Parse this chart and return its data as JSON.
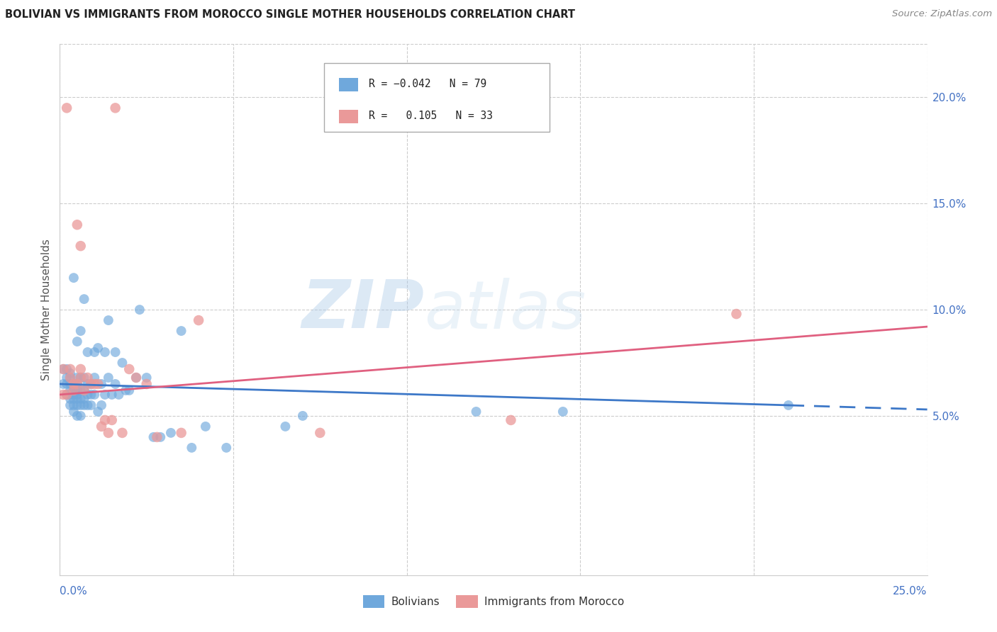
{
  "title": "BOLIVIAN VS IMMIGRANTS FROM MOROCCO SINGLE MOTHER HOUSEHOLDS CORRELATION CHART",
  "source": "Source: ZipAtlas.com",
  "ylabel": "Single Mother Households",
  "right_yticks": [
    0.05,
    0.1,
    0.15,
    0.2
  ],
  "right_yticklabels": [
    "5.0%",
    "10.0%",
    "15.0%",
    "20.0%"
  ],
  "xlim": [
    0.0,
    0.25
  ],
  "ylim": [
    -0.025,
    0.225
  ],
  "color_bolivian": "#6fa8dc",
  "color_morocco": "#ea9999",
  "color_bolivian_line": "#3d78c8",
  "color_morocco_line": "#e06080",
  "watermark_zip": "ZIP",
  "watermark_atlas": "atlas",
  "bolivian_x": [
    0.001,
    0.001,
    0.002,
    0.002,
    0.002,
    0.002,
    0.003,
    0.003,
    0.003,
    0.003,
    0.003,
    0.003,
    0.003,
    0.004,
    0.004,
    0.004,
    0.004,
    0.004,
    0.004,
    0.004,
    0.005,
    0.005,
    0.005,
    0.005,
    0.005,
    0.005,
    0.005,
    0.005,
    0.006,
    0.006,
    0.006,
    0.006,
    0.006,
    0.006,
    0.007,
    0.007,
    0.007,
    0.007,
    0.007,
    0.008,
    0.008,
    0.008,
    0.008,
    0.009,
    0.009,
    0.009,
    0.01,
    0.01,
    0.01,
    0.011,
    0.011,
    0.012,
    0.012,
    0.013,
    0.013,
    0.014,
    0.014,
    0.015,
    0.016,
    0.016,
    0.017,
    0.018,
    0.019,
    0.02,
    0.022,
    0.023,
    0.025,
    0.027,
    0.029,
    0.032,
    0.035,
    0.038,
    0.042,
    0.048,
    0.065,
    0.07,
    0.12,
    0.145,
    0.21
  ],
  "bolivian_y": [
    0.065,
    0.072,
    0.06,
    0.065,
    0.068,
    0.072,
    0.055,
    0.058,
    0.06,
    0.062,
    0.065,
    0.068,
    0.07,
    0.052,
    0.055,
    0.058,
    0.06,
    0.062,
    0.065,
    0.115,
    0.05,
    0.055,
    0.058,
    0.06,
    0.062,
    0.065,
    0.068,
    0.085,
    0.05,
    0.055,
    0.058,
    0.062,
    0.068,
    0.09,
    0.055,
    0.058,
    0.062,
    0.068,
    0.105,
    0.055,
    0.06,
    0.065,
    0.08,
    0.055,
    0.06,
    0.065,
    0.06,
    0.068,
    0.08,
    0.052,
    0.082,
    0.055,
    0.065,
    0.06,
    0.08,
    0.068,
    0.095,
    0.06,
    0.065,
    0.08,
    0.06,
    0.075,
    0.062,
    0.062,
    0.068,
    0.1,
    0.068,
    0.04,
    0.04,
    0.042,
    0.09,
    0.035,
    0.045,
    0.035,
    0.045,
    0.05,
    0.052,
    0.052,
    0.055
  ],
  "morocco_x": [
    0.001,
    0.001,
    0.002,
    0.002,
    0.003,
    0.003,
    0.004,
    0.004,
    0.005,
    0.005,
    0.006,
    0.006,
    0.006,
    0.007,
    0.008,
    0.009,
    0.01,
    0.011,
    0.012,
    0.013,
    0.014,
    0.015,
    0.016,
    0.018,
    0.02,
    0.022,
    0.025,
    0.028,
    0.035,
    0.04,
    0.075,
    0.13,
    0.195
  ],
  "morocco_y": [
    0.06,
    0.072,
    0.06,
    0.195,
    0.068,
    0.072,
    0.062,
    0.065,
    0.065,
    0.14,
    0.068,
    0.072,
    0.13,
    0.062,
    0.068,
    0.065,
    0.065,
    0.065,
    0.045,
    0.048,
    0.042,
    0.048,
    0.195,
    0.042,
    0.072,
    0.068,
    0.065,
    0.04,
    0.042,
    0.095,
    0.042,
    0.048,
    0.098
  ],
  "blue_line_x0": 0.0,
  "blue_line_x_solid_end": 0.21,
  "blue_line_x1": 0.25,
  "blue_line_y0": 0.065,
  "blue_line_y_solid_end": 0.055,
  "blue_line_y1": 0.053,
  "pink_line_x0": 0.0,
  "pink_line_x1": 0.25,
  "pink_line_y0": 0.06,
  "pink_line_y1": 0.092
}
